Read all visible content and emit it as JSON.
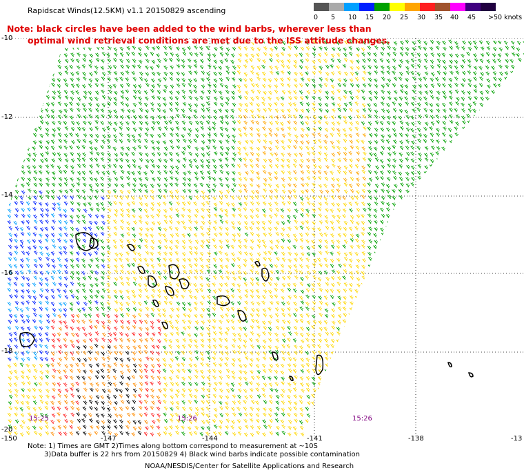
{
  "title": "Rapidscat Winds(12.5KM) v1.1 20150829 ascending",
  "note": {
    "line1": "Note: black circles have been added to the wind barbs, wherever less than",
    "line2": "optimal wind retrieval conditions are met due to the ISS attitude changes."
  },
  "legend": {
    "labels": [
      "0",
      "5",
      "10",
      "15",
      "20",
      "25",
      "30",
      "35",
      "40",
      "45",
      ">50 knots"
    ],
    "colors": [
      "#555555",
      "#aaaaaa",
      "#00a0ff",
      "#0020ff",
      "#00a000",
      "#ffff00",
      "#ffa500",
      "#ff2020",
      "#a0522d",
      "#ff00ff",
      "#400080",
      "#200040"
    ]
  },
  "axes": {
    "lat_labels": [
      "-10",
      "-12",
      "-14",
      "-16",
      "-18",
      "-20"
    ],
    "lon_labels": [
      "-150",
      "-147",
      "-144",
      "-141",
      "-138",
      "-13"
    ]
  },
  "time_labels": [
    "15:25",
    "15:26",
    "15:26"
  ],
  "footer": {
    "line1": "Note: 1) Times are GMT 2)Times along bottom correspond to measurement at ~10S",
    "line2": "3)Data buffer is 22 hrs from 20150829 4) Black wind barbs indicate possible contamination",
    "line3": "NOAA/NESDIS/Center for Satellite Applications and Research"
  }
}
